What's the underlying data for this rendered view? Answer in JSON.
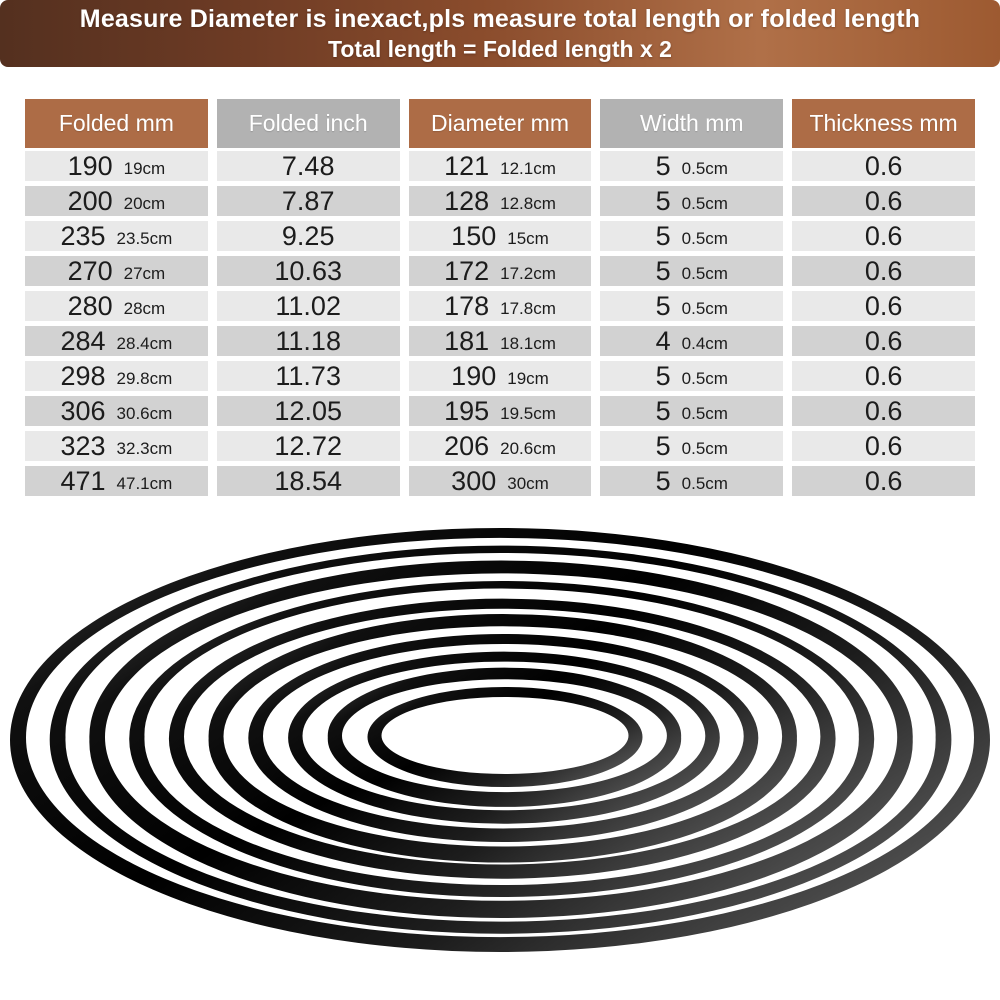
{
  "banner": {
    "line1": "Measure Diameter is inexact,pls measure total length or folded length",
    "line2": "Total length = Folded length x 2"
  },
  "table": {
    "headers": [
      "Folded mm",
      "Folded inch",
      "Diameter mm",
      "Width mm",
      "Thickness mm"
    ],
    "rows": [
      {
        "folded_mm": "190",
        "folded_cm": "19cm",
        "folded_inch": "7.48",
        "diameter_mm": "121",
        "diameter_cm": "12.1cm",
        "width_mm": "5",
        "width_cm": "0.5cm",
        "thickness_mm": "0.6"
      },
      {
        "folded_mm": "200",
        "folded_cm": "20cm",
        "folded_inch": "7.87",
        "diameter_mm": "128",
        "diameter_cm": "12.8cm",
        "width_mm": "5",
        "width_cm": "0.5cm",
        "thickness_mm": "0.6"
      },
      {
        "folded_mm": "235",
        "folded_cm": "23.5cm",
        "folded_inch": "9.25",
        "diameter_mm": "150",
        "diameter_cm": "15cm",
        "width_mm": "5",
        "width_cm": "0.5cm",
        "thickness_mm": "0.6"
      },
      {
        "folded_mm": "270",
        "folded_cm": "27cm",
        "folded_inch": "10.63",
        "diameter_mm": "172",
        "diameter_cm": "17.2cm",
        "width_mm": "5",
        "width_cm": "0.5cm",
        "thickness_mm": "0.6"
      },
      {
        "folded_mm": "280",
        "folded_cm": "28cm",
        "folded_inch": "11.02",
        "diameter_mm": "178",
        "diameter_cm": "17.8cm",
        "width_mm": "5",
        "width_cm": "0.5cm",
        "thickness_mm": "0.6"
      },
      {
        "folded_mm": "284",
        "folded_cm": "28.4cm",
        "folded_inch": "11.18",
        "diameter_mm": "181",
        "diameter_cm": "18.1cm",
        "width_mm": "4",
        "width_cm": "0.4cm",
        "thickness_mm": "0.6"
      },
      {
        "folded_mm": "298",
        "folded_cm": "29.8cm",
        "folded_inch": "11.73",
        "diameter_mm": "190",
        "diameter_cm": "19cm",
        "width_mm": "5",
        "width_cm": "0.5cm",
        "thickness_mm": "0.6"
      },
      {
        "folded_mm": "306",
        "folded_cm": "30.6cm",
        "folded_inch": "12.05",
        "diameter_mm": "195",
        "diameter_cm": "19.5cm",
        "width_mm": "5",
        "width_cm": "0.5cm",
        "thickness_mm": "0.6"
      },
      {
        "folded_mm": "323",
        "folded_cm": "32.3cm",
        "folded_inch": "12.72",
        "diameter_mm": "206",
        "diameter_cm": "20.6cm",
        "width_mm": "5",
        "width_cm": "0.5cm",
        "thickness_mm": "0.6"
      },
      {
        "folded_mm": "471",
        "folded_cm": "47.1cm",
        "folded_inch": "18.54",
        "diameter_mm": "300",
        "diameter_cm": "30cm",
        "width_mm": "5",
        "width_cm": "0.5cm",
        "thickness_mm": "0.6"
      }
    ]
  },
  "illustration": {
    "description": "stack of 10 nested flat black rubber belt rings",
    "ring_count": 10
  },
  "colors": {
    "banner_dark": "#54301f",
    "banner_light": "#b07048",
    "header_brown": "#ad6c46",
    "header_gray": "#b2b2b2",
    "row_light": "#e9e9e9",
    "row_dark": "#d2d2d2",
    "text_dark": "#1c1c1c",
    "ring_black": "#000000"
  }
}
